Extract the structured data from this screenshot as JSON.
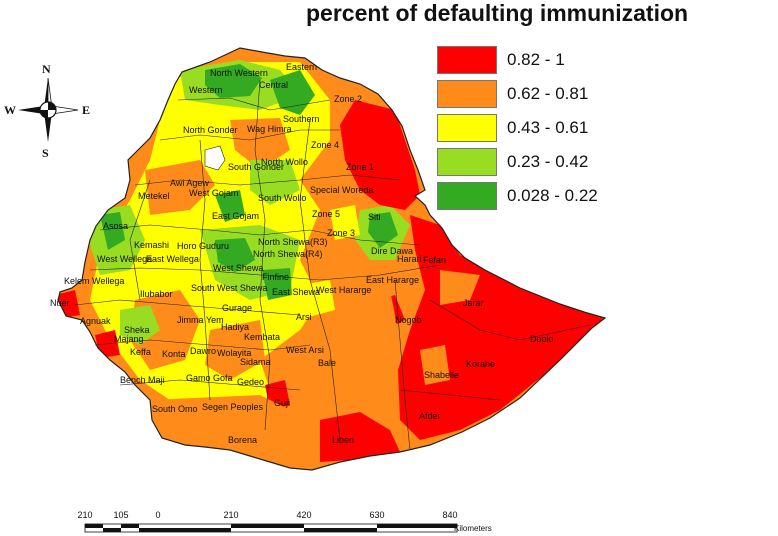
{
  "title": "percent of defaulting immunization",
  "legend": [
    {
      "label": "0.82 - 1",
      "color": "#ff0000"
    },
    {
      "label": "0.62 - 0.81",
      "color": "#ff8c1a"
    },
    {
      "label": "0.43 - 0.61",
      "color": "#ffff00"
    },
    {
      "label": "0.23 - 0.42",
      "color": "#99dd22"
    },
    {
      "label": "0.028 - 0.22",
      "color": "#33aa22"
    }
  ],
  "compass": {
    "n": "N",
    "s": "S",
    "e": "E",
    "w": "W"
  },
  "scale": {
    "ticks": [
      "210",
      "105",
      "0",
      "210",
      "420",
      "630",
      "840"
    ],
    "unit": "Kilometers"
  },
  "regions": [
    "North Western",
    "Eastern",
    "Western",
    "Central",
    "Zone 2",
    "Southern",
    "North Gonder",
    "Wag Himra",
    "Zone 4",
    "South Gonder",
    "North Wollo",
    "Zone 1",
    "Awi Agew",
    "Metekel",
    "West Gojam",
    "South Wollo",
    "Special Woreda",
    "East Gojam",
    "Zone 5",
    "Siti",
    "Asosa",
    "Kemashi",
    "Horo Guduru",
    "North Shewa(R3)",
    "Zone 3",
    "Dire Dawa",
    "West Wellega",
    "East Wellega",
    "North Shewa(R4)",
    "Harari",
    "Fafan",
    "West Shewa",
    "East Hararge",
    "Kelem Wellega",
    "South West Shewa",
    "Finfine",
    "East Shewa",
    "West Hararge",
    "Ilubabor",
    "Jarar",
    "Agnuak",
    "Nuer",
    "Jimma",
    "Gurage",
    "Arsi",
    "Nogob",
    "Doolo",
    "Sheka",
    "Yem",
    "Hadiya",
    "Kembata",
    "Majang",
    "Keffa",
    "Konta",
    "Dawro",
    "Wolayita",
    "West Arsi",
    "Korahe",
    "Bale",
    "Sidama",
    "Shabelle",
    "Bench Maji",
    "Gamo Gofa",
    "Gedeo",
    "Guji",
    "Segen Peoples",
    "South Omo",
    "Afder",
    "Borena",
    "Liben",
    "Silte"
  ]
}
